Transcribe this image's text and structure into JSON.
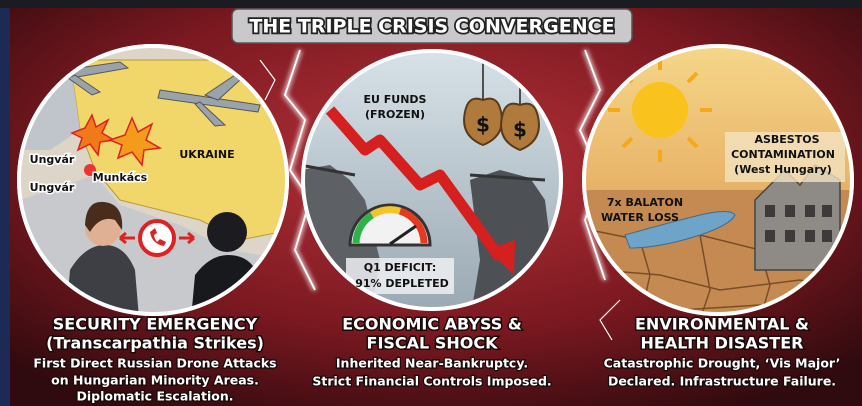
{
  "title": "THE TRIPLE CRISIS CONVERGENCE",
  "panels": [
    {
      "heading": [
        "SECURITY EMERGENCY",
        "(Transcarpathia Strikes)"
      ],
      "description": [
        "First Direct Russian Drone Attacks",
        "on Hungarian Minority Areas.",
        "Diplomatic Escalation."
      ],
      "labels": [
        "UKRAINE",
        "Ungvár",
        "Munkács",
        "Ungvár"
      ]
    },
    {
      "heading": [
        "ECONOMIC ABYSS &",
        "FISCAL SHOCK"
      ],
      "description": [
        "Inherited Near-Bankruptcy.",
        "Strict Financial Controls Imposed."
      ],
      "labels": [
        "EU FUNDS",
        "(FROZEN)",
        "$",
        "$",
        "Q1 DEFICIT:",
        "91% DEPLETED"
      ]
    },
    {
      "heading": [
        "ENVIRONMENTAL &",
        "HEALTH DISASTER"
      ],
      "description": [
        "Catastrophic Drought, ‘Vis Major’",
        "Declared. Infrastructure Failure."
      ],
      "labels": [
        "ASBESTOS",
        "CONTAMINATION",
        "(West Hungary)",
        "7x BALATON",
        "WATER LOSS"
      ]
    }
  ]
}
